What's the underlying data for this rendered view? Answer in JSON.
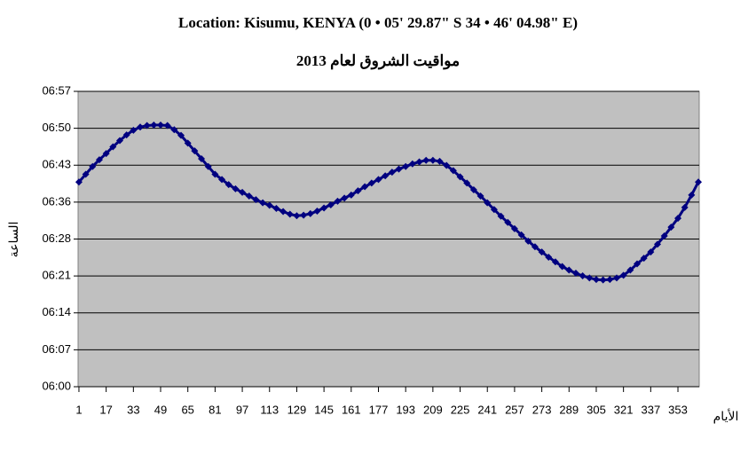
{
  "chart_data": {
    "type": "scatter",
    "title": "Location: Kisumu, KENYA (0 • 05' 29.87\" S 34 • 46' 04.98\" E)",
    "subtitle": "مواقيت الشروق لعام 2013",
    "y_label": "الساعة",
    "x_label": "الأيام",
    "color": "#000080",
    "grid": true,
    "x": [
      1,
      5,
      9,
      13,
      17,
      21,
      25,
      29,
      33,
      37,
      41,
      45,
      49,
      53,
      57,
      61,
      65,
      69,
      73,
      77,
      81,
      85,
      89,
      93,
      97,
      101,
      105,
      109,
      113,
      117,
      121,
      125,
      129,
      133,
      137,
      141,
      145,
      149,
      153,
      157,
      161,
      165,
      169,
      173,
      177,
      181,
      185,
      189,
      193,
      197,
      201,
      205,
      209,
      213,
      217,
      221,
      225,
      229,
      233,
      237,
      241,
      245,
      249,
      253,
      257,
      261,
      265,
      269,
      273,
      277,
      281,
      285,
      289,
      293,
      297,
      301,
      305,
      309,
      313,
      317,
      321,
      325,
      329,
      333,
      337,
      341,
      345,
      349,
      353,
      357,
      361,
      365
    ],
    "values": [
      399.5,
      401,
      402.5,
      403.8,
      405,
      406.3,
      407.5,
      408.6,
      409.5,
      410.1,
      410.4,
      410.5,
      410.5,
      410.4,
      409.6,
      408.5,
      407,
      405.5,
      404,
      402.5,
      401,
      400,
      399,
      398.2,
      397.5,
      396.8,
      396.1,
      395.5,
      395,
      394.4,
      393.8,
      393.3,
      393,
      393.1,
      393.4,
      393.9,
      394.5,
      395.1,
      395.8,
      396.4,
      397,
      397.8,
      398.6,
      399.3,
      400,
      400.7,
      401.4,
      402,
      402.5,
      403,
      403.4,
      403.7,
      403.7,
      403.5,
      402.7,
      401.7,
      400.5,
      399.3,
      398,
      396.8,
      395.5,
      394.2,
      392.9,
      391.7,
      390.5,
      389.3,
      388.1,
      387,
      386,
      385,
      384.1,
      383.2,
      382.5,
      381.9,
      381.4,
      381,
      380.7,
      380.6,
      380.7,
      381,
      381.5,
      382.5,
      383.7,
      384.8,
      386,
      387.5,
      389.1,
      390.8,
      392.5,
      394.6,
      397,
      399.5
    ],
    "xlim": [
      0.5,
      365.5
    ],
    "xticks": [
      1,
      17,
      33,
      49,
      65,
      81,
      97,
      113,
      129,
      145,
      161,
      177,
      193,
      209,
      225,
      241,
      257,
      273,
      289,
      305,
      321,
      337,
      353
    ],
    "ylim": [
      360,
      417
    ],
    "yticks": [
      {
        "value": 360,
        "label": "06:00"
      },
      {
        "value": 367.125,
        "label": "06:07"
      },
      {
        "value": 374.25,
        "label": "06:14"
      },
      {
        "value": 381.375,
        "label": "06:21"
      },
      {
        "value": 388.5,
        "label": "06:28"
      },
      {
        "value": 395.625,
        "label": "06:36"
      },
      {
        "value": 402.75,
        "label": "06:43"
      },
      {
        "value": 409.875,
        "label": "06:50"
      },
      {
        "value": 417,
        "label": "06:57"
      }
    ]
  }
}
